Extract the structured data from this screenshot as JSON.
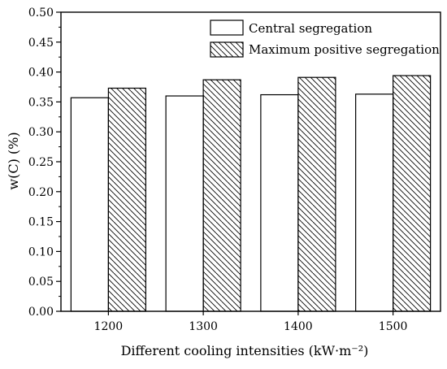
{
  "chart_data": {
    "type": "bar",
    "categories": [
      "1200",
      "1300",
      "1400",
      "1500"
    ],
    "series": [
      {
        "name": "Central segregation",
        "values": [
          0.357,
          0.36,
          0.362,
          0.363
        ],
        "fill": "white"
      },
      {
        "name": "Maximum positive segregation",
        "values": [
          0.373,
          0.387,
          0.391,
          0.394
        ],
        "fill": "hatched"
      }
    ],
    "xlabel": "Different cooling intensities (kW·m⁻²)",
    "ylabel": "w(C)  (%)",
    "ylim": [
      0,
      0.5
    ],
    "yticks": [
      "0.00",
      "0.05",
      "0.10",
      "0.15",
      "0.20",
      "0.25",
      "0.30",
      "0.35",
      "0.40",
      "0.45",
      "0.50"
    ],
    "legend_position": "top-right",
    "grid": false,
    "colors": {
      "edge": "#000000",
      "background": "#ffffff"
    }
  }
}
